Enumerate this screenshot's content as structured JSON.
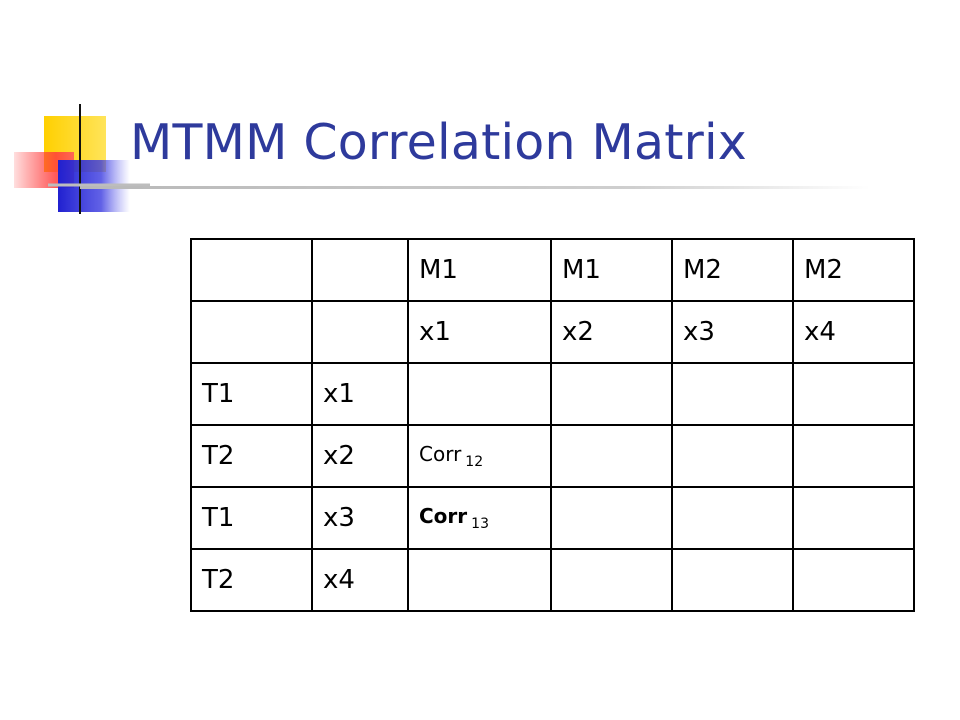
{
  "slide": {
    "title": "MTMM Correlation Matrix",
    "decoration_icon": "square-blocks-decoration-icon"
  },
  "matrix": {
    "header_rows": [
      [
        "",
        "",
        "M1",
        "M1",
        "M2",
        "M2"
      ],
      [
        "",
        "",
        "x1",
        "x2",
        "x3",
        "x4"
      ]
    ],
    "body_rows": [
      {
        "trait": "T1",
        "var": "x1",
        "cells": [
          "",
          "",
          "",
          ""
        ]
      },
      {
        "trait": "T2",
        "var": "x2",
        "cells": [
          "",
          "",
          "",
          ""
        ]
      },
      {
        "trait": "T1",
        "var": "x3",
        "cells": [
          "",
          "",
          "",
          ""
        ]
      },
      {
        "trait": "T2",
        "var": "x4",
        "cells": [
          "",
          "",
          "",
          ""
        ]
      }
    ],
    "corr_12": {
      "label": "Corr",
      "sub": "12"
    },
    "corr_13": {
      "label": "Corr",
      "sub": "13"
    }
  },
  "colors": {
    "title": "#2e3a9c",
    "deco_yellow": "#ffd000",
    "deco_red": "#ff3b3b",
    "deco_blue": "#2b2bd8"
  }
}
